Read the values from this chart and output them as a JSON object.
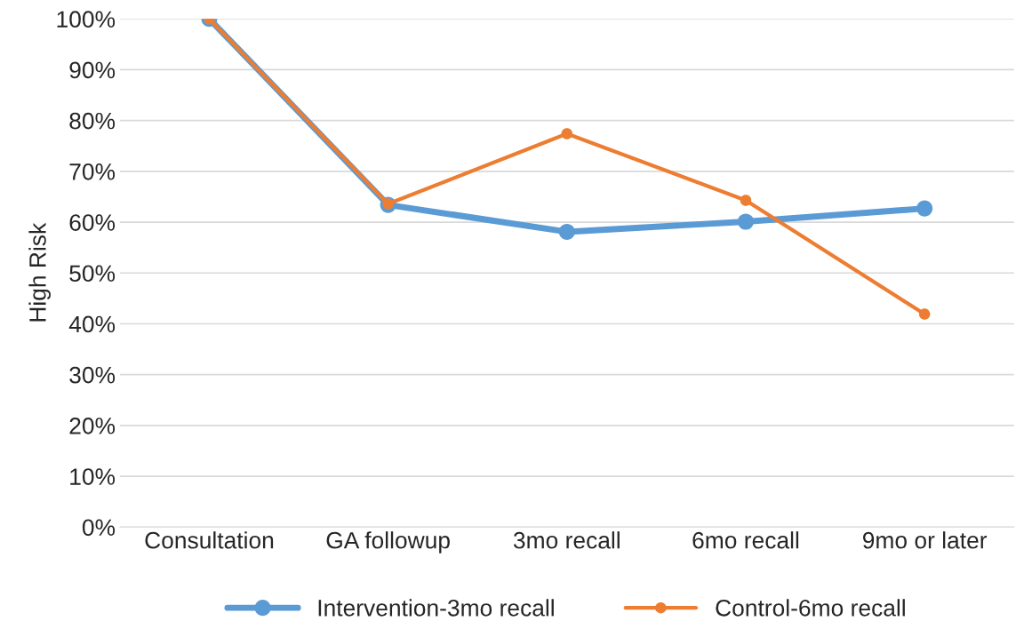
{
  "chart_data": {
    "type": "line",
    "ylabel": "High Risk",
    "categories": [
      "Consultation",
      "GA followup",
      "3mo recall",
      "6mo recall",
      "9mo or later"
    ],
    "series": [
      {
        "name": "Intervention-3mo recall",
        "color": "#5b9bd5",
        "values": [
          100,
          63.4,
          58.1,
          60.1,
          62.7
        ]
      },
      {
        "name": "Control-6mo recall",
        "color": "#ed7d31",
        "values": [
          100,
          63.6,
          77.4,
          64.3,
          41.9
        ]
      }
    ],
    "ylim": [
      0,
      100
    ],
    "yticks": [
      {
        "value": 0,
        "label": "0%"
      },
      {
        "value": 10,
        "label": "10%"
      },
      {
        "value": 20,
        "label": "20%"
      },
      {
        "value": 30,
        "label": "30%"
      },
      {
        "value": 40,
        "label": "40%"
      },
      {
        "value": 50,
        "label": "50%"
      },
      {
        "value": 60,
        "label": "60%"
      },
      {
        "value": 70,
        "label": "70%"
      },
      {
        "value": 80,
        "label": "80%"
      },
      {
        "value": 90,
        "label": "90%"
      },
      {
        "value": 100,
        "label": "100%"
      }
    ],
    "grid": "y",
    "legend": "bottom",
    "marker": "circle",
    "line_style": "solid"
  }
}
